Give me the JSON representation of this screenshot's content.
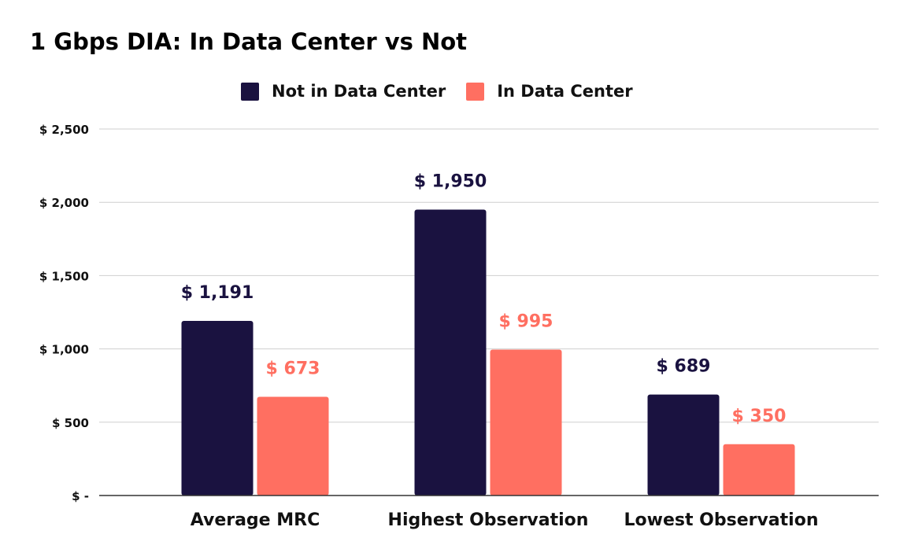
{
  "chart_data": {
    "type": "bar",
    "title": "1 Gbps DIA: In Data Center vs Not",
    "categories": [
      "Average MRC",
      "Highest Observation",
      "Lowest Observation"
    ],
    "series": [
      {
        "name": "Not in Data Center",
        "color": "#1a1240",
        "values": [
          1191,
          1950,
          689
        ],
        "labels": [
          "$ 1,191",
          "$ 1,950",
          "$ 689"
        ]
      },
      {
        "name": "In Data Center",
        "color": "#ff6f61",
        "values": [
          673,
          995,
          350
        ],
        "labels": [
          "$ 673",
          "$ 995",
          "$ 350"
        ]
      }
    ],
    "ylim": [
      0,
      2500
    ],
    "yticks": [
      0,
      500,
      1000,
      1500,
      2000,
      2500
    ],
    "ytick_labels": [
      "$ -",
      "$ 500",
      "$ 1,000",
      "$ 1,500",
      "$ 2,000",
      "$ 2,500"
    ],
    "xlabel": "",
    "ylabel": "",
    "grid": true,
    "legend_position": "top-center"
  }
}
